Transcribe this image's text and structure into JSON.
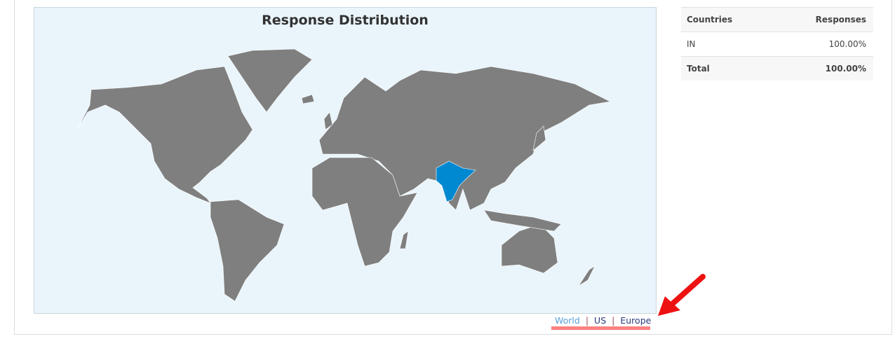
{
  "map": {
    "title": "Response Distribution",
    "highlighted_country": "IN",
    "colors": {
      "land": "#7f7f7f",
      "highlight": "#0088d1",
      "ocean": "#eaf5fb",
      "border": "#ffffff"
    }
  },
  "map_links": [
    {
      "label": "World",
      "active": true
    },
    {
      "label": "US",
      "active": false
    },
    {
      "label": "Europe",
      "active": false
    }
  ],
  "table": {
    "headers": [
      "Countries",
      "Responses"
    ],
    "rows": [
      {
        "country": "IN",
        "responses": "100.00%"
      }
    ],
    "total": {
      "label": "Total",
      "value": "100.00%"
    }
  },
  "annotation": {
    "arrow_color": "#ee1111",
    "underline_color": "#ff8080"
  }
}
